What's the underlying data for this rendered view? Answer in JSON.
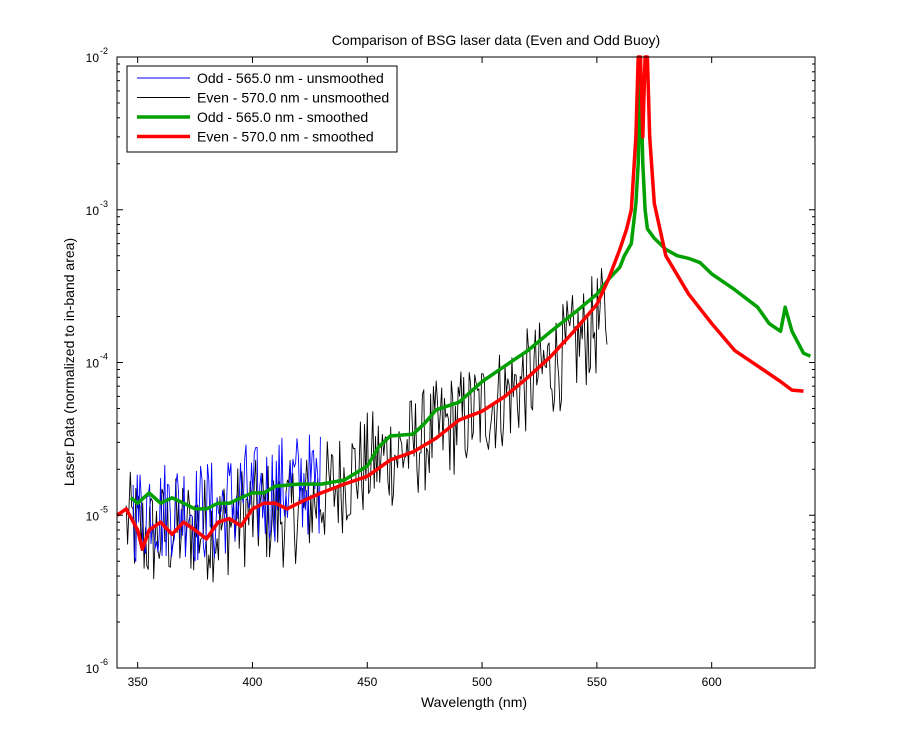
{
  "chart_data": {
    "type": "line",
    "title": "Comparison of BSG laser data (Even and Odd Buoy)",
    "xlabel": "Wavelength (nm)",
    "ylabel": "Laser Data (normalized to in-band area)",
    "xlim": [
      341,
      645
    ],
    "ylim": [
      1e-06,
      0.01
    ],
    "yscale": "log",
    "xticks": [
      350,
      400,
      450,
      500,
      550,
      600
    ],
    "yticks": [
      {
        "value": 1e-06,
        "base": "10",
        "exp": "-6"
      },
      {
        "value": 1e-05,
        "base": "10",
        "exp": "-5"
      },
      {
        "value": 0.0001,
        "base": "10",
        "exp": "-4"
      },
      {
        "value": 0.001,
        "base": "10",
        "exp": "-3"
      },
      {
        "value": 0.01,
        "base": "10",
        "exp": "-2"
      }
    ],
    "grid": false,
    "legend_position": "top-left",
    "series": [
      {
        "name": "Odd - 565.0 nm - unsmoothed",
        "color": "#0000ff",
        "style": "thin",
        "noisy": true,
        "x": [
          348,
          352,
          356,
          360,
          364,
          368,
          372,
          376,
          380,
          384,
          388,
          392,
          396,
          400,
          405,
          410,
          420,
          430
        ],
        "y": [
          1.1e-05,
          1e-05,
          1.3e-05,
          1e-05,
          1.2e-05,
          1.1e-05,
          1.2e-05,
          1e-05,
          1.1e-05,
          1e-05,
          1.2e-05,
          1.2e-05,
          1.4e-05,
          1.3e-05,
          1.35e-05,
          1.5e-05,
          1.6e-05,
          1.6e-05
        ]
      },
      {
        "name": "Even - 570.0 nm - unsmoothed",
        "color": "#000000",
        "style": "thin",
        "noisy": true,
        "x": [
          345,
          355,
          365,
          375,
          385,
          395,
          405,
          415,
          425,
          435,
          445,
          455,
          465,
          475,
          485,
          495,
          505,
          515,
          525,
          535,
          545,
          555
        ],
        "y": [
          9e-06,
          7e-06,
          8e-06,
          8.5e-06,
          8e-06,
          1e-05,
          1.05e-05,
          1e-05,
          1.2e-05,
          1.5e-05,
          2e-05,
          2.3e-05,
          2.6e-05,
          3.1e-05,
          3.8e-05,
          4.5e-05,
          5.5e-05,
          6.8e-05,
          8.5e-05,
          0.00011,
          0.00015,
          0.00021
        ]
      },
      {
        "name": "Odd - 565.0 nm - smoothed",
        "color": "#00a000",
        "style": "thick",
        "x": [
          347,
          350,
          355,
          360,
          365,
          370,
          375,
          380,
          385,
          390,
          395,
          400,
          405,
          410,
          420,
          430,
          440,
          450,
          455,
          460,
          470,
          475,
          480,
          490,
          500,
          510,
          520,
          530,
          540,
          550,
          555,
          560,
          562,
          565,
          567,
          568,
          569,
          570,
          571,
          572,
          575,
          580,
          585,
          590,
          595,
          600,
          610,
          620,
          625,
          630,
          632,
          635,
          640,
          643
        ],
        "y": [
          1.3e-05,
          1.2e-05,
          1.4e-05,
          1.2e-05,
          1.3e-05,
          1.2e-05,
          1.1e-05,
          1.1e-05,
          1.2e-05,
          1.2e-05,
          1.3e-05,
          1.4e-05,
          1.4e-05,
          1.55e-05,
          1.6e-05,
          1.6e-05,
          1.7e-05,
          2.1e-05,
          2.8e-05,
          3.3e-05,
          3.4e-05,
          4e-05,
          4.9e-05,
          5.5e-05,
          7.5e-05,
          9.5e-05,
          0.00012,
          0.00016,
          0.00021,
          0.00028,
          0.00035,
          0.00042,
          0.0005,
          0.0006,
          0.0011,
          0.002,
          0.008,
          0.002,
          0.001,
          0.00075,
          0.00065,
          0.00055,
          0.0005,
          0.00048,
          0.00045,
          0.00038,
          0.0003,
          0.00023,
          0.00018,
          0.00016,
          0.00023,
          0.00016,
          0.000115,
          0.00011
        ]
      },
      {
        "name": "Even - 570.0 nm - smoothed",
        "color": "#ff0000",
        "style": "thick",
        "x": [
          341,
          345,
          350,
          352,
          355,
          360,
          365,
          370,
          375,
          380,
          385,
          390,
          395,
          400,
          405,
          410,
          415,
          420,
          425,
          430,
          440,
          450,
          460,
          470,
          480,
          490,
          500,
          510,
          520,
          530,
          540,
          550,
          555,
          560,
          563,
          565,
          567,
          568,
          569,
          570,
          571,
          572,
          573,
          575,
          580,
          590,
          600,
          610,
          620,
          630,
          635,
          640
        ],
        "y": [
          1e-05,
          1.1e-05,
          8e-06,
          6e-06,
          8e-06,
          9e-06,
          7.5e-06,
          9e-06,
          8e-06,
          7e-06,
          9e-06,
          9.5e-06,
          8.5e-06,
          1.1e-05,
          1.2e-05,
          1.2e-05,
          1.1e-05,
          1.2e-05,
          1.3e-05,
          1.4e-05,
          1.6e-05,
          1.8e-05,
          2.3e-05,
          2.6e-05,
          3.2e-05,
          4.2e-05,
          4.8e-05,
          6e-05,
          8e-05,
          0.00011,
          0.00016,
          0.00024,
          0.00035,
          0.00055,
          0.00075,
          0.001,
          0.003,
          0.01,
          0.01,
          0.003,
          0.01,
          0.01,
          0.003,
          0.0011,
          0.0005,
          0.00028,
          0.00018,
          0.00012,
          9.5e-05,
          7.5e-05,
          6.6e-05,
          6.5e-05
        ]
      }
    ]
  }
}
